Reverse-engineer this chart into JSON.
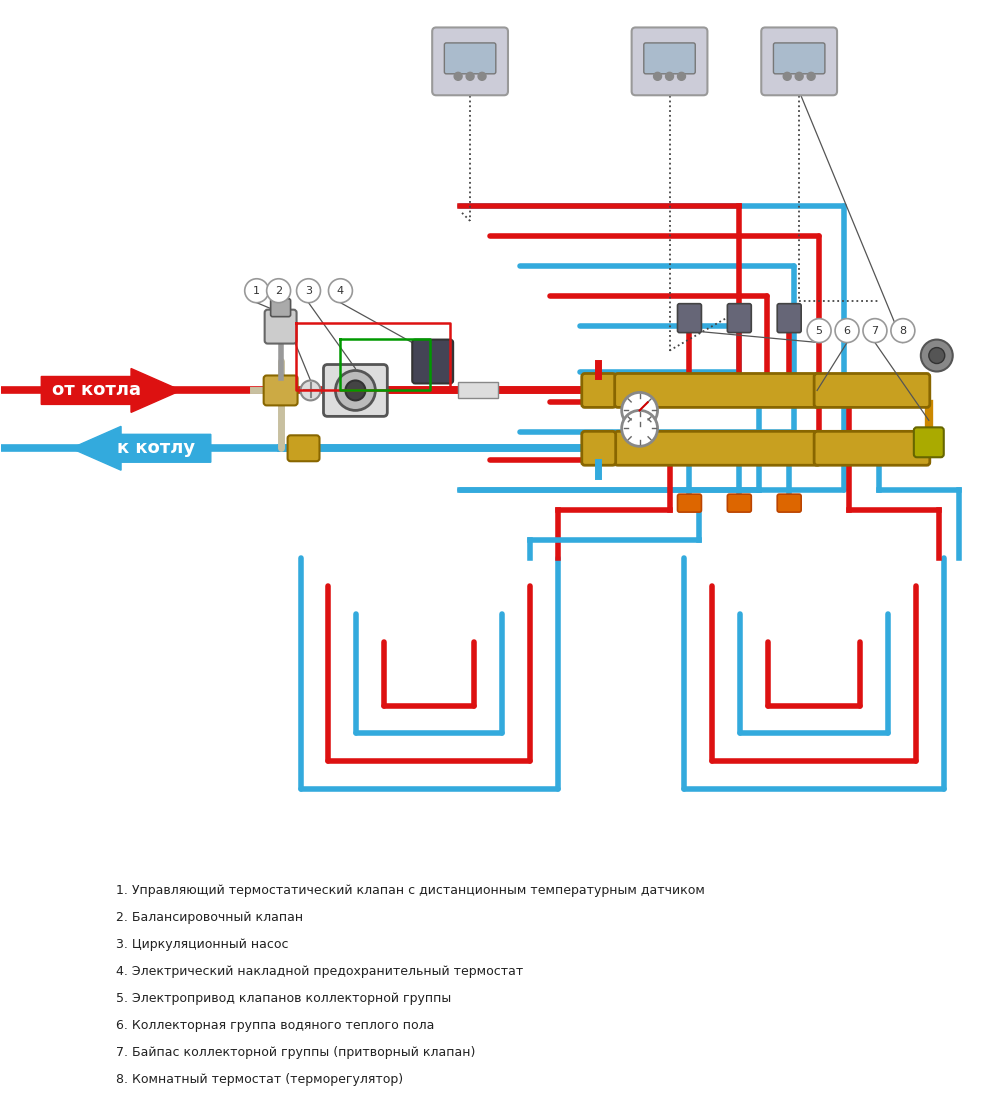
{
  "bg_color": "#ffffff",
  "red_color": "#dd1111",
  "blue_color": "#33aadd",
  "gold_color": "#c8a020",
  "green_color": "#009900",
  "dark_color": "#333333",
  "arrow_red_label": "от котла",
  "arrow_blue_label": "к котлу",
  "legend": [
    "1. Управляющий термостатический клапан с дистанционным температурным датчиком",
    "2. Балансировочный клапан",
    "3. Циркуляционный насос",
    "4. Электрический накладной предохранительный термостат",
    "5. Электропривод клапанов коллекторной группы",
    "6. Коллекторная группа водяного теплого пола",
    "7. Байпас коллекторной группы (притворный клапан)",
    "8. Комнатный термостат (терморегулятор)"
  ]
}
